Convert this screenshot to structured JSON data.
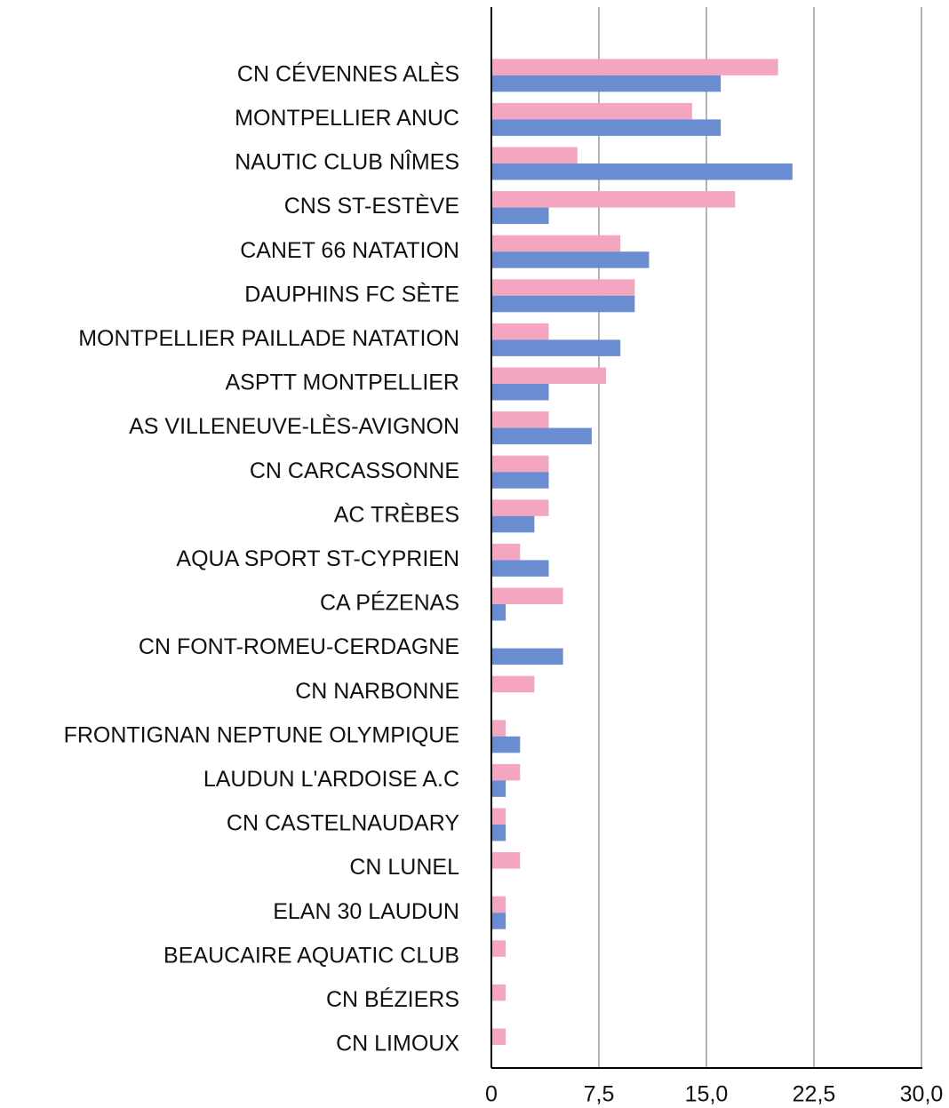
{
  "chart_data": {
    "type": "hbar",
    "categories": [
      "CN CÉVENNES ALÈS",
      "MONTPELLIER ANUC",
      "NAUTIC CLUB NÎMES",
      "CNS ST-ESTÈVE",
      "CANET 66 NATATION",
      "DAUPHINS FC SÈTE",
      "MONTPELLIER PAILLADE NATATION",
      "ASPTT MONTPELLIER",
      "AS VILLENEUVE-LÈS-AVIGNON",
      "CN CARCASSONNE",
      "AC TRÈBES",
      "AQUA SPORT ST-CYPRIEN",
      "CA PÉZENAS",
      "CN FONT-ROMEU-CERDAGNE",
      "CN NARBONNE",
      "FRONTIGNAN NEPTUNE OLYMPIQUE",
      "LAUDUN L'ARDOISE A.C",
      "CN CASTELNAUDARY",
      "CN LUNEL",
      "ELAN 30 LAUDUN",
      "BEAUCAIRE AQUATIC CLUB",
      "CN BÉZIERS",
      "CN LIMOUX"
    ],
    "series": [
      {
        "color": "#f4a5c0",
        "values": [
          20,
          14,
          6,
          17,
          9,
          10,
          4,
          8,
          4,
          4,
          4,
          2,
          5,
          0,
          3,
          1,
          2,
          1,
          2,
          1,
          1,
          1,
          1
        ]
      },
      {
        "color": "#6a8dd2",
        "values": [
          16,
          16,
          21,
          4,
          11,
          10,
          9,
          4,
          7,
          4,
          3,
          4,
          1,
          5,
          0,
          2,
          1,
          1,
          0,
          1,
          0,
          0,
          0
        ]
      }
    ],
    "xlim": [
      0,
      30
    ],
    "xticks": [
      0,
      {
        "value": 7.5,
        "label": "7,5"
      },
      {
        "value": 15,
        "label": "15,0"
      },
      {
        "value": 22.5,
        "label": "22,5"
      },
      {
        "value": 30,
        "label": "30,0"
      }
    ],
    "grid": true
  }
}
